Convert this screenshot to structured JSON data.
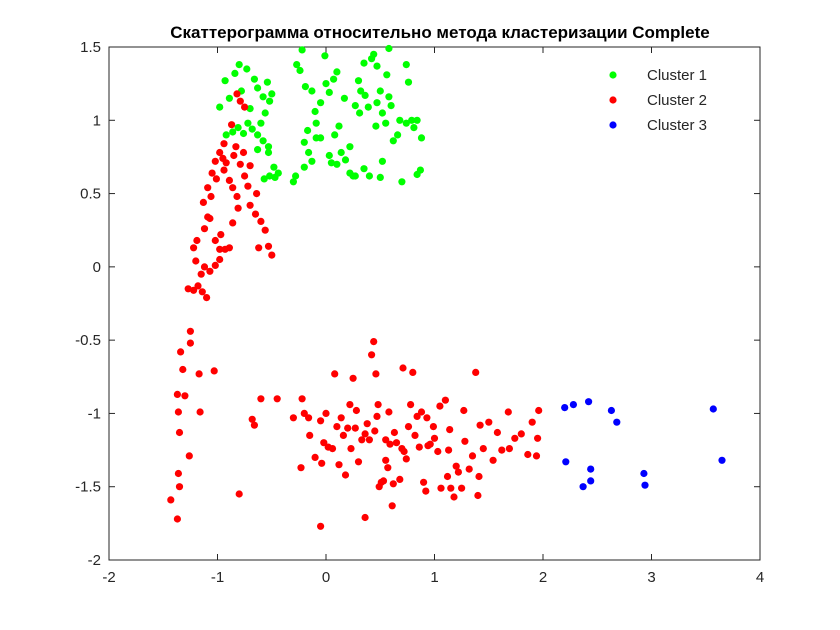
{
  "chart_data": {
    "type": "scatter",
    "title": "Скаттерограмма относительно метода кластеризации Complete",
    "xlabel": "",
    "ylabel": "",
    "xlim": [
      -2,
      4
    ],
    "ylim": [
      -2,
      1.5
    ],
    "xticks": [
      "-2",
      "-1",
      "0",
      "1",
      "2",
      "3",
      "4"
    ],
    "yticks": [
      "-2",
      "-1.5",
      "-1",
      "-0.5",
      "0",
      "0.5",
      "1",
      "1.5"
    ],
    "grid": false,
    "legend_position": "top-right",
    "series": [
      {
        "name": "Cluster 1",
        "color": "#00ff00",
        "points": [
          [
            -0.98,
            1.09
          ],
          [
            -0.93,
            1.27
          ],
          [
            -0.89,
            1.15
          ],
          [
            -0.84,
            1.32
          ],
          [
            -0.8,
            1.38
          ],
          [
            -0.78,
            1.2
          ],
          [
            -0.73,
            1.35
          ],
          [
            -0.7,
            1.08
          ],
          [
            -0.66,
            1.28
          ],
          [
            -0.63,
            1.22
          ],
          [
            -0.58,
            1.16
          ],
          [
            -0.54,
            1.26
          ],
          [
            -0.52,
            1.13
          ],
          [
            -0.5,
            1.18
          ],
          [
            -0.92,
            0.9
          ],
          [
            -0.86,
            0.92
          ],
          [
            -0.81,
            0.95
          ],
          [
            -0.76,
            0.91
          ],
          [
            -0.72,
            0.98
          ],
          [
            -0.68,
            0.94
          ],
          [
            -0.63,
            0.9
          ],
          [
            -0.58,
            0.86
          ],
          [
            -0.53,
            0.82
          ],
          [
            -0.6,
            0.98
          ],
          [
            -0.56,
            1.05
          ],
          [
            -0.63,
            0.8
          ],
          [
            -0.53,
            0.78
          ],
          [
            -0.57,
            0.6
          ],
          [
            -0.52,
            0.62
          ],
          [
            -0.47,
            0.61
          ],
          [
            -0.44,
            0.64
          ],
          [
            -0.48,
            0.68
          ],
          [
            -0.3,
            0.58
          ],
          [
            -0.22,
            1.48
          ],
          [
            -0.19,
            1.23
          ],
          [
            -0.13,
            1.2
          ],
          [
            -0.1,
            1.06
          ],
          [
            -0.09,
            0.98
          ],
          [
            -0.05,
            1.12
          ],
          [
            -0.2,
            0.85
          ],
          [
            -0.16,
            0.78
          ],
          [
            -0.13,
            0.72
          ],
          [
            -0.28,
            0.62
          ],
          [
            -0.2,
            0.68
          ],
          [
            -0.17,
            0.93
          ],
          [
            -0.09,
            0.88
          ],
          [
            -0.27,
            1.38
          ],
          [
            -0.24,
            1.34
          ],
          [
            -0.01,
            1.44
          ],
          [
            0.0,
            1.25
          ],
          [
            0.03,
            1.19
          ],
          [
            0.07,
            1.28
          ],
          [
            0.1,
            1.33
          ],
          [
            0.12,
            0.96
          ],
          [
            0.08,
            0.9
          ],
          [
            0.03,
            0.76
          ],
          [
            0.05,
            0.71
          ],
          [
            0.1,
            0.7
          ],
          [
            0.14,
            0.78
          ],
          [
            0.18,
            0.73
          ],
          [
            0.22,
            0.64
          ],
          [
            0.25,
            0.62
          ],
          [
            0.27,
            0.62
          ],
          [
            0.22,
            0.82
          ],
          [
            0.27,
            1.1
          ],
          [
            0.31,
            1.05
          ],
          [
            0.35,
            1.39
          ],
          [
            0.32,
            1.2
          ],
          [
            0.3,
            1.27
          ],
          [
            0.36,
            1.17
          ],
          [
            0.39,
            1.09
          ],
          [
            0.42,
            1.42
          ],
          [
            0.44,
            1.45
          ],
          [
            0.47,
            1.37
          ],
          [
            0.5,
            1.2
          ],
          [
            0.47,
            1.12
          ],
          [
            0.52,
            1.05
          ],
          [
            0.55,
            0.98
          ],
          [
            0.58,
            1.49
          ],
          [
            0.56,
            1.31
          ],
          [
            0.58,
            1.16
          ],
          [
            0.52,
            0.72
          ],
          [
            0.5,
            0.61
          ],
          [
            0.4,
            0.62
          ],
          [
            0.35,
            0.67
          ],
          [
            0.62,
            0.86
          ],
          [
            0.66,
            0.9
          ],
          [
            0.68,
            1.0
          ],
          [
            0.7,
            0.58
          ],
          [
            0.74,
            1.38
          ],
          [
            0.76,
            1.26
          ],
          [
            0.74,
            0.98
          ],
          [
            0.79,
            1.0
          ],
          [
            0.81,
            0.95
          ],
          [
            0.84,
            0.63
          ],
          [
            0.87,
            0.66
          ],
          [
            0.88,
            0.88
          ],
          [
            0.84,
            1.0
          ],
          [
            -0.05,
            0.88
          ],
          [
            0.17,
            1.15
          ],
          [
            0.46,
            0.96
          ],
          [
            0.6,
            1.1
          ]
        ]
      },
      {
        "name": "Cluster 2",
        "color": "#ff0000",
        "points": [
          [
            -1.43,
            -1.59
          ],
          [
            -1.37,
            -1.72
          ],
          [
            -1.36,
            -1.41
          ],
          [
            -1.35,
            -1.5
          ],
          [
            -1.35,
            -1.13
          ],
          [
            -1.36,
            -0.99
          ],
          [
            -1.37,
            -0.87
          ],
          [
            -1.3,
            -0.88
          ],
          [
            -1.34,
            -0.58
          ],
          [
            -1.32,
            -0.7
          ],
          [
            -1.26,
            -1.29
          ],
          [
            -1.25,
            -0.44
          ],
          [
            -1.25,
            -0.52
          ],
          [
            -1.17,
            -0.73
          ],
          [
            -1.16,
            -0.99
          ],
          [
            -1.03,
            -0.71
          ],
          [
            -1.27,
            -0.15
          ],
          [
            -1.22,
            -0.16
          ],
          [
            -1.18,
            -0.13
          ],
          [
            -1.14,
            -0.17
          ],
          [
            -1.1,
            -0.21
          ],
          [
            -1.15,
            -0.05
          ],
          [
            -1.12,
            0.0
          ],
          [
            -1.07,
            -0.03
          ],
          [
            -1.02,
            0.01
          ],
          [
            -0.98,
            0.05
          ],
          [
            -1.2,
            0.04
          ],
          [
            -1.22,
            0.13
          ],
          [
            -1.19,
            0.18
          ],
          [
            -1.12,
            0.26
          ],
          [
            -1.07,
            0.33
          ],
          [
            -1.13,
            0.44
          ],
          [
            -1.09,
            0.54
          ],
          [
            -1.06,
            0.48
          ],
          [
            -1.01,
            0.6
          ],
          [
            -1.02,
            0.72
          ],
          [
            -1.05,
            0.64
          ],
          [
            -0.98,
            0.78
          ],
          [
            -0.95,
            0.74
          ],
          [
            -0.92,
            0.71
          ],
          [
            -0.94,
            0.66
          ],
          [
            -0.89,
            0.59
          ],
          [
            -0.86,
            0.54
          ],
          [
            -0.82,
            0.48
          ],
          [
            -0.85,
            0.76
          ],
          [
            -0.79,
            0.7
          ],
          [
            -0.75,
            0.62
          ],
          [
            -0.72,
            0.55
          ],
          [
            -0.76,
            0.78
          ],
          [
            -0.7,
            0.42
          ],
          [
            -0.65,
            0.36
          ],
          [
            -0.6,
            0.31
          ],
          [
            -0.56,
            0.25
          ],
          [
            -0.53,
            0.14
          ],
          [
            -0.5,
            0.08
          ],
          [
            -0.62,
            0.13
          ],
          [
            -0.81,
            0.4
          ],
          [
            -0.86,
            0.3
          ],
          [
            -0.89,
            0.13
          ],
          [
            -0.93,
            0.12
          ],
          [
            -0.97,
            0.22
          ],
          [
            -0.98,
            0.12
          ],
          [
            -1.02,
            0.18
          ],
          [
            -0.94,
            0.84
          ],
          [
            -0.87,
            0.97
          ],
          [
            -0.83,
            0.82
          ],
          [
            -0.7,
            0.69
          ],
          [
            -0.64,
            0.5
          ],
          [
            -0.79,
            1.13
          ],
          [
            -0.82,
            1.18
          ],
          [
            -0.75,
            1.09
          ],
          [
            -1.09,
            0.34
          ],
          [
            -0.8,
            -1.55
          ],
          [
            -0.66,
            -1.08
          ],
          [
            -0.68,
            -1.04
          ],
          [
            -0.45,
            -0.9
          ],
          [
            -0.22,
            -0.9
          ],
          [
            -0.2,
            -1.0
          ],
          [
            -0.16,
            -1.03
          ],
          [
            -0.15,
            -1.15
          ],
          [
            -0.1,
            -1.3
          ],
          [
            -0.05,
            -1.77
          ],
          [
            -0.02,
            -1.2
          ],
          [
            0.0,
            -1.0
          ],
          [
            0.02,
            -1.23
          ],
          [
            0.06,
            -1.24
          ],
          [
            0.1,
            -1.09
          ],
          [
            0.12,
            -1.35
          ],
          [
            0.16,
            -1.15
          ],
          [
            0.18,
            -1.42
          ],
          [
            0.2,
            -1.1
          ],
          [
            0.23,
            -1.24
          ],
          [
            0.25,
            -0.76
          ],
          [
            0.27,
            -1.1
          ],
          [
            0.3,
            -1.33
          ],
          [
            0.33,
            -1.18
          ],
          [
            0.36,
            -1.71
          ],
          [
            0.38,
            -1.07
          ],
          [
            0.4,
            -1.18
          ],
          [
            0.42,
            -0.6
          ],
          [
            0.44,
            -0.51
          ],
          [
            0.45,
            -1.12
          ],
          [
            0.47,
            -1.02
          ],
          [
            0.49,
            -1.5
          ],
          [
            0.51,
            -1.47
          ],
          [
            0.53,
            -1.46
          ],
          [
            0.55,
            -1.18
          ],
          [
            0.57,
            -1.37
          ],
          [
            0.59,
            -1.21
          ],
          [
            0.61,
            -1.63
          ],
          [
            0.63,
            -1.13
          ],
          [
            0.65,
            -1.2
          ],
          [
            0.68,
            -1.45
          ],
          [
            0.7,
            -1.24
          ],
          [
            0.72,
            -1.26
          ],
          [
            0.74,
            -1.31
          ],
          [
            0.76,
            -1.09
          ],
          [
            0.78,
            -0.94
          ],
          [
            0.82,
            -1.15
          ],
          [
            0.86,
            -1.23
          ],
          [
            0.9,
            -1.47
          ],
          [
            0.92,
            -1.53
          ],
          [
            0.94,
            -1.22
          ],
          [
            0.96,
            -1.21
          ],
          [
            1.0,
            -1.17
          ],
          [
            1.03,
            -1.26
          ],
          [
            1.06,
            -1.51
          ],
          [
            1.1,
            -0.91
          ],
          [
            1.12,
            -1.43
          ],
          [
            1.15,
            -1.51
          ],
          [
            1.18,
            -1.57
          ],
          [
            1.22,
            -1.4
          ],
          [
            1.25,
            -1.51
          ],
          [
            1.28,
            -1.19
          ],
          [
            1.32,
            -1.38
          ],
          [
            1.35,
            -1.29
          ],
          [
            1.38,
            -0.72
          ],
          [
            1.4,
            -1.56
          ],
          [
            1.42,
            -1.08
          ],
          [
            1.45,
            -1.24
          ],
          [
            1.5,
            -1.06
          ],
          [
            1.54,
            -1.32
          ],
          [
            1.58,
            -1.13
          ],
          [
            1.62,
            -1.25
          ],
          [
            1.68,
            -0.99
          ],
          [
            1.74,
            -1.17
          ],
          [
            1.8,
            -1.14
          ],
          [
            1.86,
            -1.28
          ],
          [
            1.9,
            -1.06
          ],
          [
            1.94,
            -1.29
          ],
          [
            1.95,
            -1.17
          ],
          [
            1.96,
            -0.98
          ],
          [
            1.05,
            -0.95
          ],
          [
            0.99,
            -1.09
          ],
          [
            0.93,
            -1.03
          ],
          [
            0.88,
            -0.99
          ],
          [
            0.84,
            -1.02
          ],
          [
            0.8,
            -0.72
          ],
          [
            0.71,
            -0.69
          ],
          [
            0.58,
            -0.99
          ],
          [
            0.48,
            -0.94
          ],
          [
            0.36,
            -1.14
          ],
          [
            0.28,
            -0.98
          ],
          [
            0.22,
            -0.94
          ],
          [
            0.14,
            -1.03
          ],
          [
            -0.04,
            -1.34
          ],
          [
            -0.23,
            -1.37
          ],
          [
            -0.3,
            -1.03
          ],
          [
            1.14,
            -1.11
          ],
          [
            1.2,
            -1.36
          ],
          [
            -0.05,
            -1.05
          ],
          [
            0.62,
            -1.48
          ],
          [
            0.46,
            -0.73
          ],
          [
            0.08,
            -0.73
          ],
          [
            0.55,
            -1.32
          ],
          [
            1.13,
            -1.25
          ],
          [
            1.27,
            -0.98
          ],
          [
            1.69,
            -1.24
          ],
          [
            1.41,
            -1.43
          ],
          [
            -0.6,
            -0.9
          ]
        ]
      },
      {
        "name": "Cluster 3",
        "color": "#0000ff",
        "points": [
          [
            2.2,
            -0.96
          ],
          [
            2.28,
            -0.94
          ],
          [
            2.42,
            -0.92
          ],
          [
            2.63,
            -0.98
          ],
          [
            2.68,
            -1.06
          ],
          [
            2.21,
            -1.33
          ],
          [
            2.44,
            -1.38
          ],
          [
            2.44,
            -1.46
          ],
          [
            2.37,
            -1.5
          ],
          [
            2.93,
            -1.41
          ],
          [
            2.94,
            -1.49
          ],
          [
            3.57,
            -0.97
          ],
          [
            3.65,
            -1.32
          ]
        ]
      }
    ]
  }
}
